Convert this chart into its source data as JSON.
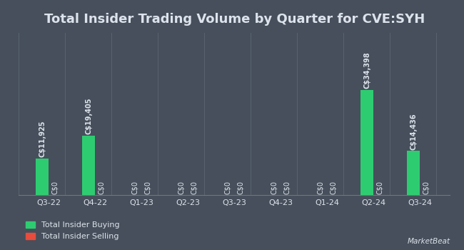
{
  "title": "Total Insider Trading Volume by Quarter for CVE:SYH",
  "quarters": [
    "Q3-22",
    "Q4-22",
    "Q1-23",
    "Q2-23",
    "Q3-23",
    "Q4-23",
    "Q1-24",
    "Q2-24",
    "Q3-24"
  ],
  "buying": [
    11925,
    19405,
    0,
    0,
    0,
    0,
    0,
    34398,
    14436
  ],
  "selling": [
    0,
    0,
    0,
    0,
    0,
    0,
    0,
    0,
    0
  ],
  "buying_color": "#2ecc71",
  "selling_color": "#e74c3c",
  "background_color": "#464f5b",
  "text_color": "#dde3ec",
  "bar_label_color": "#dde3ec",
  "bar_width": 0.28,
  "title_fontsize": 13,
  "tick_fontsize": 8,
  "label_fontsize": 7,
  "legend_fontsize": 8
}
